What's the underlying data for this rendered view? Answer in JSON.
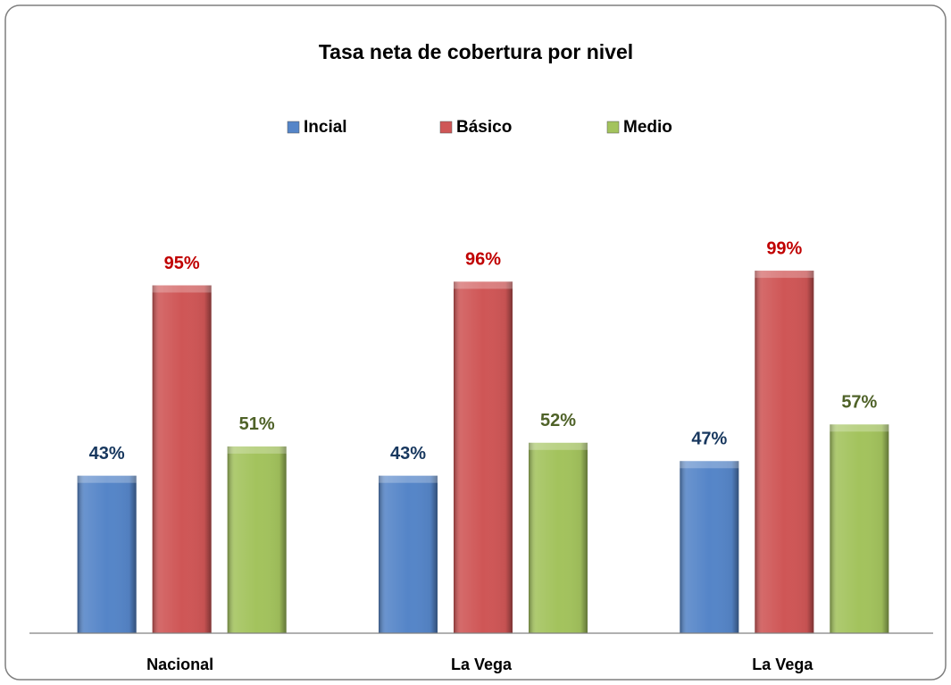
{
  "chart_data": {
    "type": "bar",
    "title": "Tasa neta de cobertura por nivel",
    "categories": [
      "Nacional",
      "La Vega",
      "La Vega"
    ],
    "series": [
      {
        "name": "Incial",
        "color": "#5585c8",
        "label_color": "#17375e",
        "values": [
          43,
          43,
          47
        ],
        "value_labels": [
          "43%",
          "43%",
          "47%"
        ]
      },
      {
        "name": "Básico",
        "color": "#cf5656",
        "label_color": "#c00000",
        "values": [
          95,
          96,
          99
        ],
        "value_labels": [
          "95%",
          "96%",
          "99%"
        ]
      },
      {
        "name": "Medio",
        "color": "#a3c35d",
        "label_color": "#4f6228",
        "values": [
          51,
          52,
          57
        ],
        "value_labels": [
          "51%",
          "52%",
          "57%"
        ]
      }
    ],
    "ylim": [
      0,
      100
    ],
    "legend": "top"
  }
}
